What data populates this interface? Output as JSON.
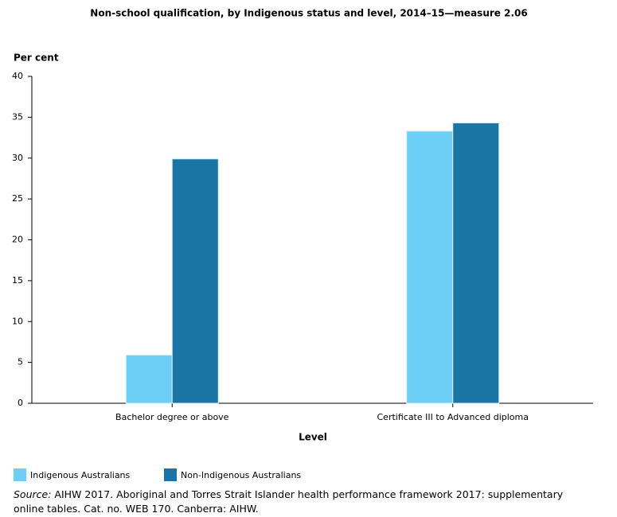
{
  "chart_data": {
    "type": "bar",
    "title": "Non-school qualification, by Indigenous status and level, 2014–15—measure 2.06",
    "y_label": "Per cent",
    "x_label": "Level",
    "categories": [
      "Bachelor degree or above",
      "Certificate III to Advanced diploma"
    ],
    "series": [
      {
        "name": "Indigenous Australians",
        "color": "#6dcff6",
        "values": [
          5.9,
          33.3
        ]
      },
      {
        "name": "Non-Indigenous Australians",
        "color": "#1a75a4",
        "values": [
          29.9,
          34.3
        ]
      }
    ],
    "ylim": [
      0,
      40
    ],
    "yticks": [
      0,
      5,
      10,
      15,
      20,
      25,
      30,
      35,
      40
    ],
    "grid": false,
    "source_label": "Source:",
    "source": "AIHW 2017. Aboriginal and Torres Strait Islander health performance framework 2017: supplementary online tables. Cat. no. WEB 170. Canberra: AIHW."
  }
}
